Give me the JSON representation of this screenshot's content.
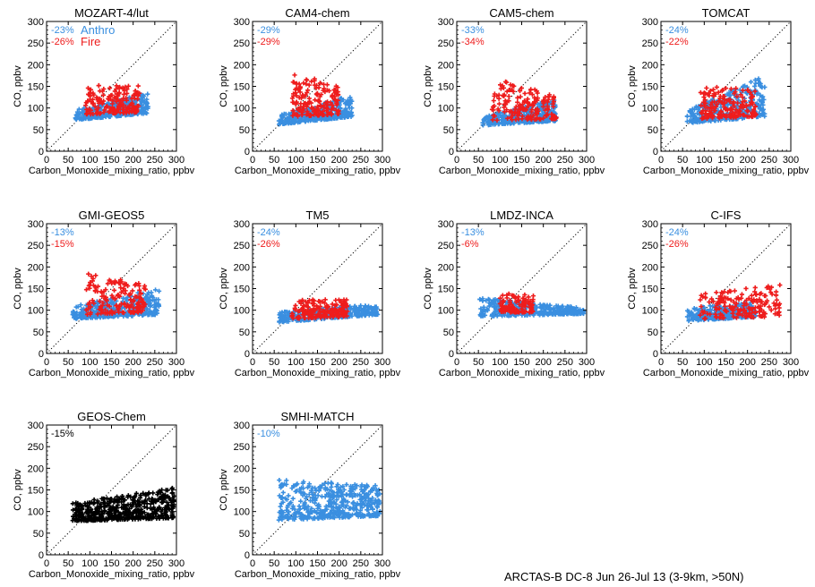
{
  "footer": "ARCTAS-B DC-8 Jun 26-Jul 13 (3-9km, >50N)",
  "colors": {
    "anthro": "#3a8fe0",
    "fire": "#ee1c1c",
    "black": "#000000",
    "axis": "#000000"
  },
  "chart_data": [
    {
      "type": "scatter",
      "title": "MOZART-4/lut",
      "xlabel": "Carbon_Monoxide_mixing_ratio, ppbv",
      "ylabel": "CO, ppbv",
      "xlim": [
        0,
        300
      ],
      "ylim": [
        0,
        300
      ],
      "xticks": [
        "0",
        "50",
        "100",
        "150",
        "200",
        "250",
        "300"
      ],
      "yticks": [
        "0",
        "50",
        "100",
        "150",
        "200",
        "250",
        "300"
      ],
      "one_to_one_line": true,
      "series": [
        {
          "name": "Anthro",
          "label": "-23%",
          "color": "#3a8fe0",
          "cluster": {
            "x": [
              65,
              235
            ],
            "ymin_at_start": 72,
            "ymax_at_start": 95,
            "ymin_at_end": 88,
            "ymax_at_end": 135,
            "count": 320
          }
        },
        {
          "name": "Fire",
          "label": "-26%",
          "color": "#ee1c1c",
          "cluster": {
            "x": [
              90,
              215
            ],
            "ymin_at_start": 85,
            "ymax_at_start": 155,
            "ymin_at_end": 90,
            "ymax_at_end": 155,
            "count": 170
          }
        }
      ]
    },
    {
      "type": "scatter",
      "title": "CAM4-chem",
      "xlabel": "Carbon_Monoxide_mixing_ratio, ppbv",
      "ylabel": "CO, ppbv",
      "xlim": [
        0,
        300
      ],
      "ylim": [
        0,
        300
      ],
      "xticks": [
        "0",
        "50",
        "100",
        "150",
        "200",
        "250",
        "300"
      ],
      "yticks": [
        "0",
        "50",
        "100",
        "150",
        "200",
        "250",
        "300"
      ],
      "one_to_one_line": true,
      "series": [
        {
          "label": "-29%",
          "color": "#3a8fe0",
          "cluster": {
            "x": [
              60,
              230
            ],
            "ymin_at_start": 62,
            "ymax_at_start": 85,
            "ymin_at_end": 80,
            "ymax_at_end": 130,
            "count": 320
          }
        },
        {
          "label": "-29%",
          "color": "#ee1c1c",
          "cluster": {
            "x": [
              90,
              200
            ],
            "ymin_at_start": 80,
            "ymax_at_start": 180,
            "ymin_at_end": 85,
            "ymax_at_end": 155,
            "count": 170
          }
        }
      ]
    },
    {
      "type": "scatter",
      "title": "CAM5-chem",
      "xlabel": "Carbon_Monoxide_mixing_ratio, ppbv",
      "ylabel": "CO, ppbv",
      "xlim": [
        0,
        300
      ],
      "ylim": [
        0,
        300
      ],
      "xticks": [
        "0",
        "50",
        "100",
        "150",
        "200",
        "250",
        "300"
      ],
      "yticks": [
        "0",
        "50",
        "100",
        "150",
        "200",
        "250",
        "300"
      ],
      "one_to_one_line": true,
      "series": [
        {
          "label": "-33%",
          "color": "#3a8fe0",
          "cluster": {
            "x": [
              60,
              230
            ],
            "ymin_at_start": 60,
            "ymax_at_start": 80,
            "ymin_at_end": 70,
            "ymax_at_end": 120,
            "count": 320
          }
        },
        {
          "label": "-34%",
          "color": "#ee1c1c",
          "cluster": {
            "x": [
              80,
              230
            ],
            "ymin_at_start": 70,
            "ymax_at_start": 170,
            "ymin_at_end": 75,
            "ymax_at_end": 130,
            "count": 170
          }
        }
      ]
    },
    {
      "type": "scatter",
      "title": "TOMCAT",
      "xlabel": "Carbon_Monoxide_mixing_ratio, ppbv",
      "ylabel": "CO, ppbv",
      "xlim": [
        0,
        300
      ],
      "ylim": [
        0,
        300
      ],
      "xticks": [
        "0",
        "50",
        "100",
        "150",
        "200",
        "250",
        "300"
      ],
      "yticks": [
        "0",
        "50",
        "100",
        "150",
        "200",
        "250",
        "300"
      ],
      "one_to_one_line": true,
      "series": [
        {
          "label": "-24%",
          "color": "#3a8fe0",
          "cluster": {
            "x": [
              60,
              240
            ],
            "ymin_at_start": 65,
            "ymax_at_start": 95,
            "ymin_at_end": 80,
            "ymax_at_end": 175,
            "count": 320
          }
        },
        {
          "label": "-22%",
          "color": "#ee1c1c",
          "cluster": {
            "x": [
              90,
              220
            ],
            "ymin_at_start": 75,
            "ymax_at_start": 150,
            "ymin_at_end": 80,
            "ymax_at_end": 145,
            "count": 170
          }
        }
      ]
    },
    {
      "type": "scatter",
      "title": "GMI-GEOS5",
      "xlabel": "Carbon_Monoxide_mixing_ratio, ppbv",
      "ylabel": "CO, ppbv",
      "xlim": [
        0,
        300
      ],
      "ylim": [
        0,
        300
      ],
      "xticks": [
        "0",
        "50",
        "100",
        "150",
        "200",
        "250",
        "300"
      ],
      "yticks": [
        "0",
        "50",
        "100",
        "150",
        "200",
        "250",
        "300"
      ],
      "one_to_one_line": true,
      "series": [
        {
          "label": "-13%",
          "color": "#3a8fe0",
          "cluster": {
            "x": [
              60,
              260
            ],
            "ymin_at_start": 80,
            "ymax_at_start": 110,
            "ymin_at_end": 90,
            "ymax_at_end": 150,
            "count": 320
          }
        },
        {
          "label": "-15%",
          "color": "#ee1c1c",
          "cluster": {
            "x": [
              90,
              230
            ],
            "ymin_at_start": 90,
            "ymax_at_start": 185,
            "ymin_at_end": 95,
            "ymax_at_end": 160,
            "count": 170
          }
        }
      ]
    },
    {
      "type": "scatter",
      "title": "TM5",
      "xlabel": "Carbon_Monoxide_mixing_ratio, ppbv",
      "ylabel": "CO, ppbv",
      "xlim": [
        0,
        300
      ],
      "ylim": [
        0,
        300
      ],
      "xticks": [
        "0",
        "50",
        "100",
        "150",
        "200",
        "250",
        "300"
      ],
      "yticks": [
        "0",
        "50",
        "100",
        "150",
        "200",
        "250",
        "300"
      ],
      "one_to_one_line": true,
      "series": [
        {
          "label": "-24%",
          "color": "#3a8fe0",
          "cluster": {
            "x": [
              60,
              290
            ],
            "ymin_at_start": 72,
            "ymax_at_start": 95,
            "ymin_at_end": 90,
            "ymax_at_end": 115,
            "count": 320
          }
        },
        {
          "label": "-26%",
          "color": "#ee1c1c",
          "cluster": {
            "x": [
              90,
              220
            ],
            "ymin_at_start": 80,
            "ymax_at_start": 125,
            "ymin_at_end": 85,
            "ymax_at_end": 125,
            "count": 170
          }
        }
      ]
    },
    {
      "type": "scatter",
      "title": "LMDZ-INCA",
      "xlabel": "Carbon_Monoxide_mixing_ratio, ppbv",
      "ylabel": "CO, ppbv",
      "xlim": [
        0,
        300
      ],
      "ylim": [
        0,
        300
      ],
      "xticks": [
        "0",
        "50",
        "100",
        "150",
        "200",
        "250",
        "300"
      ],
      "yticks": [
        "0",
        "50",
        "100",
        "150",
        "200",
        "250",
        "300"
      ],
      "one_to_one_line": true,
      "series": [
        {
          "label": "-13%",
          "color": "#3a8fe0",
          "cluster": {
            "x": [
              50,
              295
            ],
            "ymin_at_start": 85,
            "ymax_at_start": 130,
            "ymin_at_end": 92,
            "ymax_at_end": 105,
            "count": 320
          }
        },
        {
          "label": "-6%",
          "color": "#ee1c1c",
          "cluster": {
            "x": [
              100,
              180
            ],
            "ymin_at_start": 95,
            "ymax_at_start": 140,
            "ymin_at_end": 95,
            "ymax_at_end": 135,
            "count": 120
          }
        }
      ]
    },
    {
      "type": "scatter",
      "title": "C-IFS",
      "xlabel": "Carbon_Monoxide_mixing_ratio, ppbv",
      "ylabel": "CO, ppbv",
      "xlim": [
        0,
        300
      ],
      "ylim": [
        0,
        300
      ],
      "xticks": [
        "0",
        "50",
        "100",
        "150",
        "200",
        "250",
        "300"
      ],
      "yticks": [
        "0",
        "50",
        "100",
        "150",
        "200",
        "250",
        "300"
      ],
      "one_to_one_line": true,
      "series": [
        {
          "label": "-24%",
          "color": "#3a8fe0",
          "cluster": {
            "x": [
              60,
              220
            ],
            "ymin_at_start": 75,
            "ymax_at_start": 105,
            "ymin_at_end": 85,
            "ymax_at_end": 120,
            "count": 300
          }
        },
        {
          "label": "-26%",
          "color": "#ee1c1c",
          "cluster": {
            "x": [
              90,
              275
            ],
            "ymin_at_start": 80,
            "ymax_at_start": 140,
            "ymin_at_end": 85,
            "ymax_at_end": 160,
            "count": 170
          }
        }
      ]
    },
    {
      "type": "scatter",
      "title": "GEOS-Chem",
      "xlabel": "Carbon_Monoxide_mixing_ratio, ppbv",
      "ylabel": "CO, ppbv",
      "xlim": [
        0,
        300
      ],
      "ylim": [
        0,
        300
      ],
      "xticks": [
        "0",
        "50",
        "100",
        "150",
        "200",
        "250",
        "300"
      ],
      "yticks": [
        "0",
        "50",
        "100",
        "150",
        "200",
        "250",
        "300"
      ],
      "one_to_one_line": true,
      "series": [
        {
          "label": "-15%",
          "color": "#000000",
          "cluster": {
            "x": [
              60,
              295
            ],
            "ymin_at_start": 78,
            "ymax_at_start": 120,
            "ymin_at_end": 85,
            "ymax_at_end": 155,
            "count": 450
          }
        }
      ]
    },
    {
      "type": "scatter",
      "title": "SMHI-MATCH",
      "xlabel": "Carbon_Monoxide_mixing_ratio, ppbv",
      "ylabel": "CO, ppbv",
      "xlim": [
        0,
        300
      ],
      "ylim": [
        0,
        300
      ],
      "xticks": [
        "0",
        "50",
        "100",
        "150",
        "200",
        "250",
        "300"
      ],
      "yticks": [
        "0",
        "50",
        "100",
        "150",
        "200",
        "250",
        "300"
      ],
      "one_to_one_line": true,
      "series": [
        {
          "label": "-10%",
          "color": "#3a8fe0",
          "cluster": {
            "x": [
              60,
              295
            ],
            "ymin_at_start": 80,
            "ymax_at_start": 175,
            "ymin_at_end": 90,
            "ymax_at_end": 160,
            "count": 450
          }
        }
      ]
    }
  ]
}
